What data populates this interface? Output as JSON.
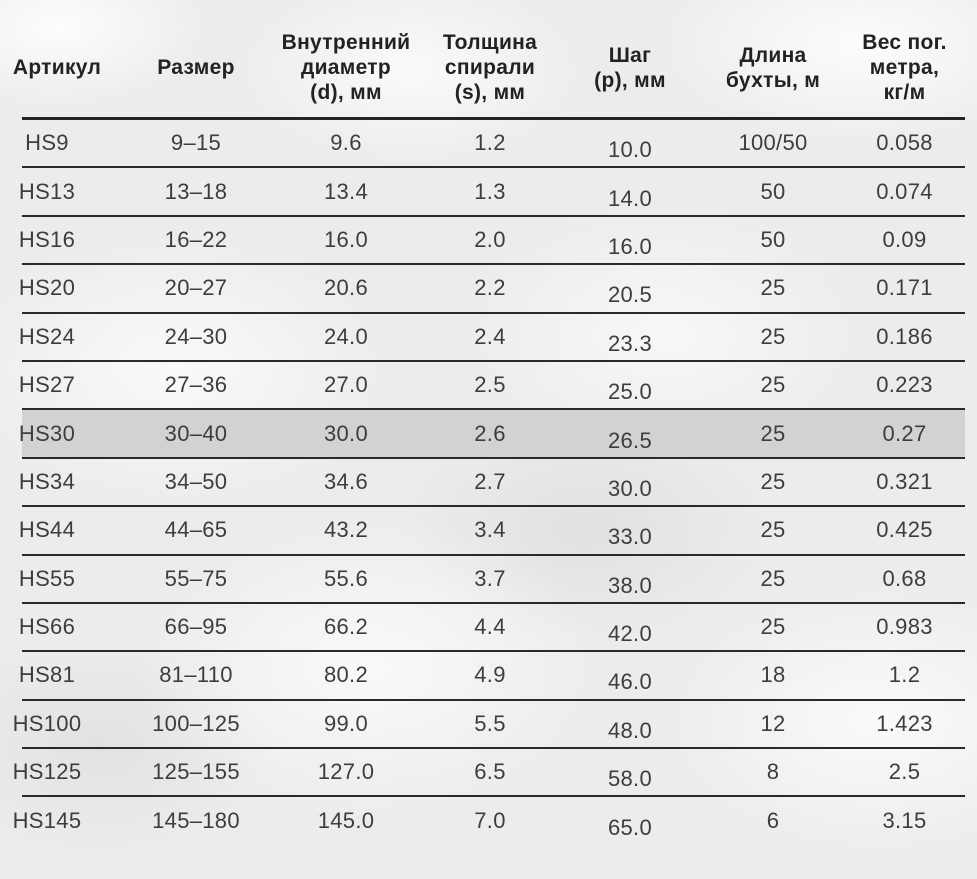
{
  "colors": {
    "row_highlight": "#d2d2d2",
    "rule_line": "#2a2a2a",
    "header_text": "#222222",
    "body_text": "#3d3d3d",
    "page_background": "#ebeced"
  },
  "table": {
    "columns": [
      {
        "key": "article",
        "label": "Артикул"
      },
      {
        "key": "size",
        "label": "Размер"
      },
      {
        "key": "inner_d",
        "label": "Внутренний\nдиаметр\n(d), мм"
      },
      {
        "key": "thickness",
        "label": "Толщина\nспирали\n(s), мм"
      },
      {
        "key": "step",
        "label": "Шаг\n(p), мм"
      },
      {
        "key": "length",
        "label": "Длина\nбухты, м"
      },
      {
        "key": "weight",
        "label": "Вес пог.\nметра,\nкг/м"
      }
    ],
    "rows": [
      {
        "article": "HS9",
        "size": "9–15",
        "inner_d": "9.6",
        "thickness": "1.2",
        "step": "10.0",
        "length": "100/50",
        "weight": "0.058",
        "highlighted": false
      },
      {
        "article": "HS13",
        "size": "13–18",
        "inner_d": "13.4",
        "thickness": "1.3",
        "step": "14.0",
        "length": "50",
        "weight": "0.074",
        "highlighted": false
      },
      {
        "article": "HS16",
        "size": "16–22",
        "inner_d": "16.0",
        "thickness": "2.0",
        "step": "16.0",
        "length": "50",
        "weight": "0.09",
        "highlighted": false
      },
      {
        "article": "HS20",
        "size": "20–27",
        "inner_d": "20.6",
        "thickness": "2.2",
        "step": "20.5",
        "length": "25",
        "weight": "0.171",
        "highlighted": false
      },
      {
        "article": "HS24",
        "size": "24–30",
        "inner_d": "24.0",
        "thickness": "2.4",
        "step": "23.3",
        "length": "25",
        "weight": "0.186",
        "highlighted": false
      },
      {
        "article": "HS27",
        "size": "27–36",
        "inner_d": "27.0",
        "thickness": "2.5",
        "step": "25.0",
        "length": "25",
        "weight": "0.223",
        "highlighted": false
      },
      {
        "article": "HS30",
        "size": "30–40",
        "inner_d": "30.0",
        "thickness": "2.6",
        "step": "26.5",
        "length": "25",
        "weight": "0.27",
        "highlighted": true
      },
      {
        "article": "HS34",
        "size": "34–50",
        "inner_d": "34.6",
        "thickness": "2.7",
        "step": "30.0",
        "length": "25",
        "weight": "0.321",
        "highlighted": false
      },
      {
        "article": "HS44",
        "size": "44–65",
        "inner_d": "43.2",
        "thickness": "3.4",
        "step": "33.0",
        "length": "25",
        "weight": "0.425",
        "highlighted": false
      },
      {
        "article": "HS55",
        "size": "55–75",
        "inner_d": "55.6",
        "thickness": "3.7",
        "step": "38.0",
        "length": "25",
        "weight": "0.68",
        "highlighted": false
      },
      {
        "article": "HS66",
        "size": "66–95",
        "inner_d": "66.2",
        "thickness": "4.4",
        "step": "42.0",
        "length": "25",
        "weight": "0.983",
        "highlighted": false
      },
      {
        "article": "HS81",
        "size": "81–110",
        "inner_d": "80.2",
        "thickness": "4.9",
        "step": "46.0",
        "length": "18",
        "weight": "1.2",
        "highlighted": false
      },
      {
        "article": "HS100",
        "size": "100–125",
        "inner_d": "99.0",
        "thickness": "5.5",
        "step": "48.0",
        "length": "12",
        "weight": "1.423",
        "highlighted": false
      },
      {
        "article": "HS125",
        "size": "125–155",
        "inner_d": "127.0",
        "thickness": "6.5",
        "step": "58.0",
        "length": "8",
        "weight": "2.5",
        "highlighted": false
      },
      {
        "article": "HS145",
        "size": "145–180",
        "inner_d": "145.0",
        "thickness": "7.0",
        "step": "65.0",
        "length": "6",
        "weight": "3.15",
        "highlighted": false
      }
    ]
  },
  "chart_data": {
    "type": "table",
    "title": "",
    "columns": [
      "Артикул",
      "Размер",
      "Внутренний диаметр (d), мм",
      "Толщина спирали (s), мм",
      "Шаг (p), мм",
      "Длина бухты, м",
      "Вес пог. метра, кг/м"
    ],
    "rows": [
      [
        "HS9",
        "9–15",
        "9.6",
        "1.2",
        "10.0",
        "100/50",
        "0.058"
      ],
      [
        "HS13",
        "13–18",
        "13.4",
        "1.3",
        "14.0",
        "50",
        "0.074"
      ],
      [
        "HS16",
        "16–22",
        "16.0",
        "2.0",
        "16.0",
        "50",
        "0.09"
      ],
      [
        "HS20",
        "20–27",
        "20.6",
        "2.2",
        "20.5",
        "25",
        "0.171"
      ],
      [
        "HS24",
        "24–30",
        "24.0",
        "2.4",
        "23.3",
        "25",
        "0.186"
      ],
      [
        "HS27",
        "27–36",
        "27.0",
        "2.5",
        "25.0",
        "25",
        "0.223"
      ],
      [
        "HS30",
        "30–40",
        "30.0",
        "2.6",
        "26.5",
        "25",
        "0.27"
      ],
      [
        "HS34",
        "34–50",
        "34.6",
        "2.7",
        "30.0",
        "25",
        "0.321"
      ],
      [
        "HS44",
        "44–65",
        "43.2",
        "3.4",
        "33.0",
        "25",
        "0.425"
      ],
      [
        "HS55",
        "55–75",
        "55.6",
        "3.7",
        "38.0",
        "25",
        "0.68"
      ],
      [
        "HS66",
        "66–95",
        "66.2",
        "4.4",
        "42.0",
        "25",
        "0.983"
      ],
      [
        "HS81",
        "81–110",
        "80.2",
        "4.9",
        "46.0",
        "18",
        "1.2"
      ],
      [
        "HS100",
        "100–125",
        "99.0",
        "5.5",
        "48.0",
        "12",
        "1.423"
      ],
      [
        "HS125",
        "125–155",
        "127.0",
        "6.5",
        "58.0",
        "8",
        "2.5"
      ],
      [
        "HS145",
        "145–180",
        "145.0",
        "7.0",
        "65.0",
        "6",
        "3.15"
      ]
    ],
    "highlighted_row": "HS30"
  }
}
